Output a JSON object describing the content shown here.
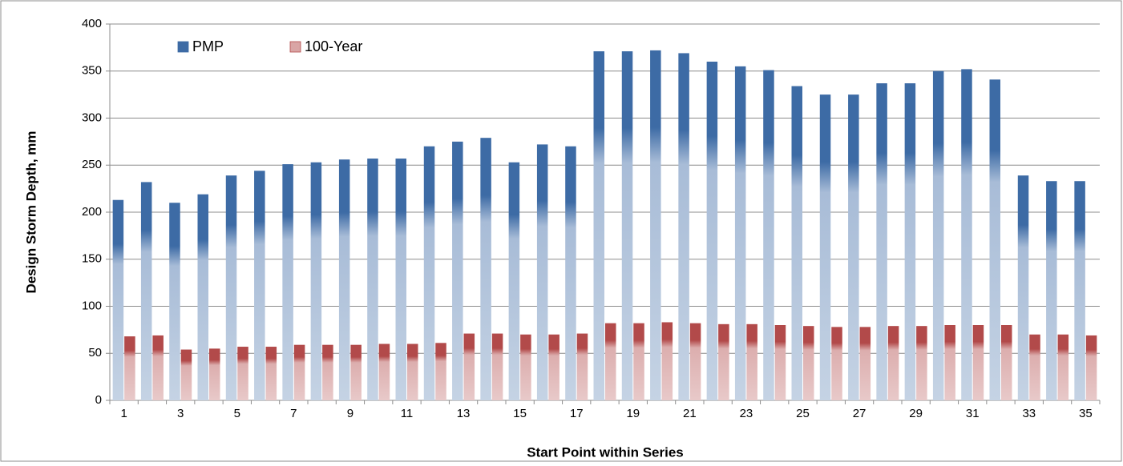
{
  "chart_data": {
    "type": "bar",
    "xlabel": "Start Point within Series",
    "ylabel": "Design Storm Depth, mm",
    "categories": [
      "1",
      null,
      "3",
      null,
      "5",
      null,
      "7",
      null,
      "9",
      null,
      "11",
      null,
      "13",
      null,
      "15",
      null,
      "17",
      null,
      "19",
      null,
      "21",
      null,
      "23",
      null,
      "25",
      null,
      "27",
      null,
      "29",
      null,
      "31",
      null,
      "33",
      null,
      "35"
    ],
    "series": [
      {
        "name": "PMP",
        "color": "#3d6ba5",
        "values": [
          213,
          232,
          210,
          219,
          239,
          244,
          251,
          253,
          256,
          257,
          257,
          270,
          275,
          279,
          253,
          272,
          270,
          371,
          371,
          372,
          369,
          360,
          355,
          351,
          334,
          325,
          325,
          337,
          337,
          350,
          352,
          341,
          239,
          233,
          233
        ]
      },
      {
        "name": "100-Year",
        "color": "#b24a4a",
        "values": [
          68,
          69,
          54,
          55,
          57,
          57,
          59,
          59,
          59,
          60,
          60,
          61,
          71,
          71,
          70,
          70,
          71,
          82,
          82,
          83,
          82,
          81,
          81,
          80,
          79,
          78,
          78,
          79,
          79,
          80,
          80,
          80,
          70,
          70,
          69
        ]
      }
    ],
    "ylim": [
      0,
      400
    ],
    "yticks": [
      0,
      50,
      100,
      150,
      200,
      250,
      300,
      350,
      400
    ],
    "grid": true,
    "legend": "top-left"
  }
}
